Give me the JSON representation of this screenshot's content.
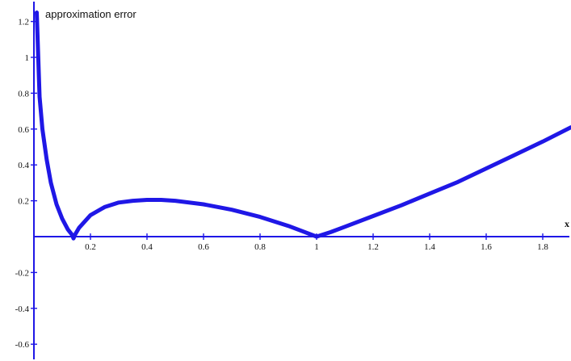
{
  "chart_data": {
    "type": "line",
    "title": "approximation error",
    "xlabel": "x",
    "ylabel": "",
    "xlim": [
      0,
      1.9
    ],
    "ylim": [
      -0.63,
      1.27
    ],
    "x_ticks": [
      0.2,
      0.4,
      0.6,
      0.8,
      1,
      1.2,
      1.4,
      1.6,
      1.8
    ],
    "x_tick_labels": [
      "0.2",
      "0.4",
      "0.6",
      "0.8",
      "1",
      "1.2",
      "1.4",
      "1.6",
      "1.8"
    ],
    "y_ticks": [
      1.2,
      1,
      0.8,
      0.6,
      0.4,
      0.2,
      -0.2,
      -0.4,
      -0.6
    ],
    "y_tick_labels": [
      "1.2",
      "1",
      "0.8",
      "0.6",
      "0.4",
      "0.2",
      "-0.2",
      "-0.4",
      "-0.6"
    ],
    "grid": false,
    "legend": "none",
    "series": [
      {
        "color": "#1f17e6",
        "x": [
          0.01,
          0.02,
          0.03,
          0.045,
          0.06,
          0.08,
          0.1,
          0.12,
          0.135,
          0.14,
          0.145,
          0.16,
          0.2,
          0.25,
          0.3,
          0.35,
          0.4,
          0.45,
          0.5,
          0.6,
          0.7,
          0.8,
          0.9,
          0.95,
          1.0,
          1.05,
          1.1,
          1.2,
          1.3,
          1.4,
          1.5,
          1.6,
          1.7,
          1.8,
          1.9
        ],
        "values": [
          1.25,
          0.78,
          0.6,
          0.43,
          0.3,
          0.18,
          0.1,
          0.04,
          0.01,
          -0.01,
          0.01,
          0.05,
          0.12,
          0.165,
          0.19,
          0.2,
          0.205,
          0.205,
          0.2,
          0.18,
          0.15,
          0.11,
          0.06,
          0.03,
          0.0,
          0.025,
          0.055,
          0.115,
          0.175,
          0.24,
          0.305,
          0.38,
          0.455,
          0.53,
          0.61
        ]
      }
    ]
  }
}
